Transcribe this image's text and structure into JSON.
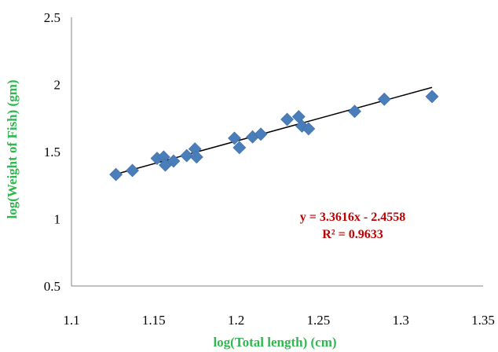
{
  "chart_data": {
    "type": "scatter",
    "xlabel": "log(Total length) (cm)",
    "ylabel": "log(Weight of Fish) (gm)",
    "xlim": [
      1.1,
      1.35
    ],
    "ylim": [
      0.5,
      2.5
    ],
    "x_ticks": [
      "1.1",
      "1.15",
      "1.2",
      "1.25",
      "1.3",
      "1.35"
    ],
    "y_ticks": [
      "0.5",
      "1",
      "1.5",
      "2",
      "2.5"
    ],
    "grid": false,
    "legend": "none",
    "marker_color": "#4a7ebb",
    "marker_shape": "diamond",
    "axis_title_color": "#2eb84f",
    "annotation_color": "#c00000",
    "points": [
      [
        1.127,
        1.33
      ],
      [
        1.137,
        1.36
      ],
      [
        1.152,
        1.45
      ],
      [
        1.156,
        1.46
      ],
      [
        1.157,
        1.4
      ],
      [
        1.162,
        1.43
      ],
      [
        1.17,
        1.47
      ],
      [
        1.175,
        1.52
      ],
      [
        1.176,
        1.46
      ],
      [
        1.199,
        1.6
      ],
      [
        1.202,
        1.53
      ],
      [
        1.21,
        1.61
      ],
      [
        1.215,
        1.63
      ],
      [
        1.231,
        1.74
      ],
      [
        1.238,
        1.76
      ],
      [
        1.24,
        1.69
      ],
      [
        1.244,
        1.67
      ],
      [
        1.272,
        1.8
      ],
      [
        1.29,
        1.89
      ],
      [
        1.319,
        1.91
      ]
    ],
    "trendline": {
      "slope": 3.3616,
      "intercept": -2.4558,
      "x_range": [
        1.127,
        1.319
      ],
      "color": "#000000"
    },
    "annotation": {
      "equation": "y = 3.3616x - 2.4558",
      "r_squared": "R² = 0.9633"
    }
  }
}
